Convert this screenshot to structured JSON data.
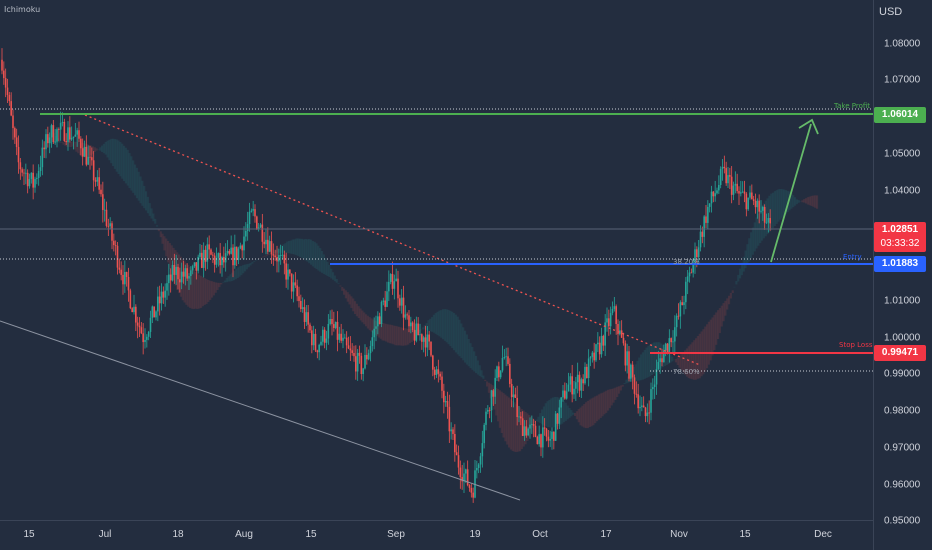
{
  "indicator": "Ichimoku",
  "currency": "USD",
  "price_axis": [
    "1.08000",
    "1.07000",
    "1.06000",
    "1.05000",
    "1.04000",
    "1.03000",
    "1.02000",
    "1.01000",
    "1.00000",
    "0.99000",
    "0.98000",
    "0.97000",
    "0.96000",
    "0.95000"
  ],
  "date_axis": [
    "15",
    "Jul",
    "18",
    "Aug",
    "15",
    "Sep",
    "19",
    "Oct",
    "17",
    "Nov",
    "15",
    "Dec"
  ],
  "tags": {
    "take_profit": {
      "label": "Take Profit",
      "price": "1.06014",
      "color": "#4caf50"
    },
    "last_price": {
      "price": "1.02851",
      "countdown": "03:33:32",
      "color": "#f23645"
    },
    "entry": {
      "label": "Entry",
      "price": "1.01883",
      "color": "#2962ff"
    },
    "stop_loss": {
      "label": "Stop Loss",
      "price": "0.99471",
      "color": "#f23645"
    }
  },
  "fib_labels": {
    "fib_382": "38.20%",
    "fib_786": "78.60%"
  },
  "chart_data": {
    "type": "candlestick",
    "title": "",
    "ylabel": "USD",
    "ylim": [
      0.95,
      1.085
    ],
    "x_ticks": [
      "15",
      "Jul",
      "18",
      "Aug",
      "15",
      "Sep",
      "19",
      "Oct",
      "17",
      "Nov",
      "15",
      "Dec"
    ],
    "grid": false,
    "close_series": [
      {
        "date": "Jun 10",
        "close": 1.0755
      },
      {
        "date": "Jun 14",
        "close": 1.047
      },
      {
        "date": "Jun 18",
        "close": 1.041
      },
      {
        "date": "Jun 22",
        "close": 1.055
      },
      {
        "date": "Jun 26",
        "close": 1.056
      },
      {
        "date": "Jun 30",
        "close": 1.053
      },
      {
        "date": "Jul 4",
        "close": 1.042
      },
      {
        "date": "Jul 8",
        "close": 1.026
      },
      {
        "date": "Jul 12",
        "close": 1.012
      },
      {
        "date": "Jul 14",
        "close": 0.999
      },
      {
        "date": "Jul 18",
        "close": 1.008
      },
      {
        "date": "Jul 22",
        "close": 1.017
      },
      {
        "date": "Jul 26",
        "close": 1.015
      },
      {
        "date": "Jul 30",
        "close": 1.022
      },
      {
        "date": "Aug 3",
        "close": 1.019
      },
      {
        "date": "Aug 7",
        "close": 1.022
      },
      {
        "date": "Aug 10",
        "close": 1.033
      },
      {
        "date": "Aug 13",
        "close": 1.025
      },
      {
        "date": "Aug 17",
        "close": 1.018
      },
      {
        "date": "Aug 21",
        "close": 1.008
      },
      {
        "date": "Aug 25",
        "close": 0.996
      },
      {
        "date": "Aug 29",
        "close": 1.002
      },
      {
        "date": "Sep 2",
        "close": 0.995
      },
      {
        "date": "Sep 6",
        "close": 0.99
      },
      {
        "date": "Sep 9",
        "close": 1.004
      },
      {
        "date": "Sep 12",
        "close": 1.016
      },
      {
        "date": "Sep 15",
        "close": 1.0
      },
      {
        "date": "Sep 19",
        "close": 0.999
      },
      {
        "date": "Sep 23",
        "close": 0.985
      },
      {
        "date": "Sep 26",
        "close": 0.965
      },
      {
        "date": "Sep 28",
        "close": 0.956
      },
      {
        "date": "Oct 1",
        "close": 0.98
      },
      {
        "date": "Oct 4",
        "close": 0.994
      },
      {
        "date": "Oct 7",
        "close": 0.975
      },
      {
        "date": "Oct 10",
        "close": 0.972
      },
      {
        "date": "Oct 13",
        "close": 0.97
      },
      {
        "date": "Oct 17",
        "close": 0.985
      },
      {
        "date": "Oct 21",
        "close": 0.987
      },
      {
        "date": "Oct 25",
        "close": 0.995
      },
      {
        "date": "Oct 28",
        "close": 1.006
      },
      {
        "date": "Oct 31",
        "close": 0.99
      },
      {
        "date": "Nov 3",
        "close": 0.976
      },
      {
        "date": "Nov 6",
        "close": 0.993
      },
      {
        "date": "Nov 8",
        "close": 1.002
      },
      {
        "date": "Nov 10",
        "close": 1.018
      },
      {
        "date": "Nov 12",
        "close": 1.034
      },
      {
        "date": "Nov 15",
        "close": 1.044
      },
      {
        "date": "Nov 17",
        "close": 1.038
      },
      {
        "date": "Nov 19",
        "close": 1.036
      },
      {
        "date": "Nov 21",
        "close": 1.0285
      }
    ],
    "levels": [
      {
        "name": "Take Profit",
        "price": 1.06014
      },
      {
        "name": "Entry",
        "price": 1.01883
      },
      {
        "name": "Stop Loss",
        "price": 0.99471
      }
    ]
  }
}
